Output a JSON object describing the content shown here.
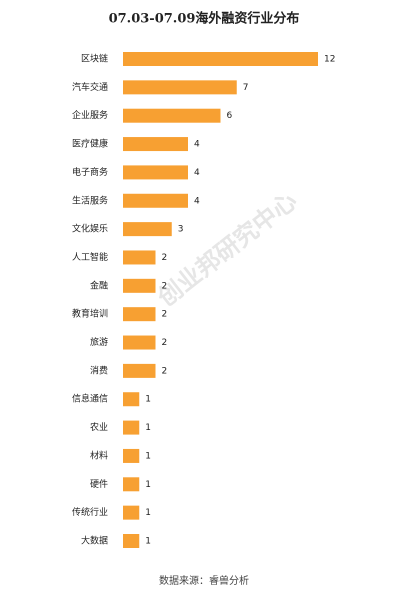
{
  "chart_data": {
    "type": "bar",
    "orientation": "horizontal",
    "title": "07.03-07.09海外融资行业分布",
    "categories": [
      "区块链",
      "汽车交通",
      "企业服务",
      "医疗健康",
      "电子商务",
      "生活服务",
      "文化娱乐",
      "人工智能",
      "金融",
      "教育培训",
      "旅游",
      "消费",
      "信息通信",
      "农业",
      "材料",
      "硬件",
      "传统行业",
      "大数据"
    ],
    "values": [
      12,
      7,
      6,
      4,
      4,
      4,
      3,
      2,
      2,
      2,
      2,
      2,
      1,
      1,
      1,
      1,
      1,
      1
    ],
    "color": "#f7a032",
    "source": "数据来源：睿兽分析",
    "watermark": "创业邦研究中心"
  }
}
